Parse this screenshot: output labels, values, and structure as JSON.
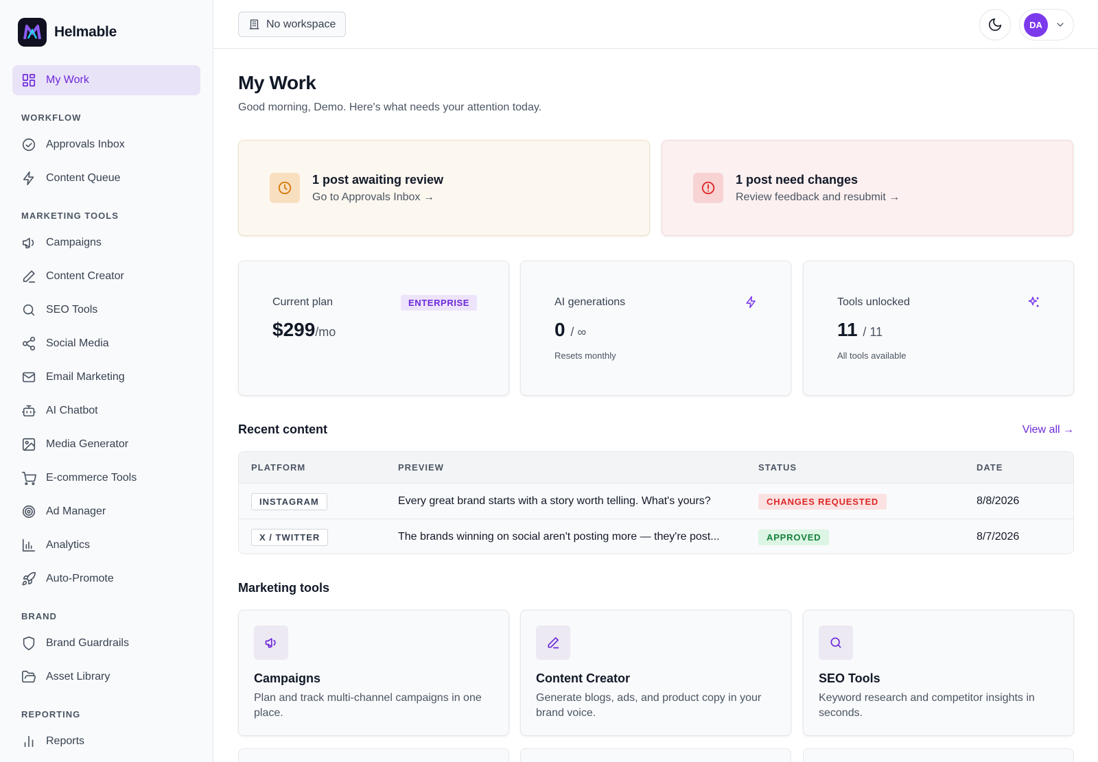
{
  "app": {
    "name": "Helmable"
  },
  "sidebar": {
    "top_item": {
      "label": "My Work",
      "icon": "grid-icon"
    },
    "sections": {
      "workflow": "WORKFLOW",
      "marketing": "MARKETING TOOLS",
      "brand": "BRAND",
      "reporting": "REPORTING"
    },
    "workflow_items": [
      "Approvals Inbox",
      "Content Queue"
    ],
    "marketing_items": [
      "Campaigns",
      "Content Creator",
      "SEO Tools",
      "Social Media",
      "Email Marketing",
      "AI Chatbot",
      "Media Generator",
      "E-commerce Tools",
      "Ad Manager",
      "Analytics",
      "Auto-Promote"
    ],
    "brand_items": [
      "Brand Guardrails",
      "Asset Library"
    ],
    "reporting_items": [
      "Reports"
    ]
  },
  "header": {
    "workspace": "No workspace",
    "user_initials": "DA"
  },
  "main": {
    "title": "My Work",
    "subtitle": "Good morning, Demo. Here's what needs your attention today.",
    "alerts": [
      {
        "title": "1 post awaiting review",
        "link": "Go to Approvals Inbox →",
        "color": "#d97706"
      },
      {
        "title": "1 post need changes",
        "link": "Review feedback and resubmit →",
        "color": "#dc2626"
      }
    ],
    "stats": {
      "plan": {
        "label": "Current plan",
        "badge": "ENTERPRISE",
        "value": "$299",
        "suffix": "/mo"
      },
      "ai": {
        "label": "AI generations",
        "value": "0",
        "suffix": "/ ∞",
        "note": "Resets monthly"
      },
      "tools": {
        "label": "Tools unlocked",
        "value": "11",
        "suffix": "/ 11",
        "note": "All tools available"
      }
    },
    "recent": {
      "title": "Recent content",
      "view_all": "View all →",
      "columns": [
        "PLATFORM",
        "PREVIEW",
        "STATUS",
        "DATE"
      ],
      "rows": [
        {
          "platform": "INSTAGRAM",
          "preview": "Every great brand starts with a story worth telling. What's yours?",
          "status": "CHANGES REQUESTED",
          "date": "8/8/2026"
        },
        {
          "platform": "X / TWITTER",
          "preview": "The brands winning on social aren't posting more — they're post...",
          "status": "APPROVED",
          "date": "8/7/2026"
        }
      ]
    },
    "tools_section": {
      "title": "Marketing tools",
      "cards": [
        {
          "title": "Campaigns",
          "desc": "Plan and track multi-channel campaigns in one place.",
          "icon": "megaphone-icon"
        },
        {
          "title": "Content Creator",
          "desc": "Generate blogs, ads, and product copy in your brand voice.",
          "icon": "pen-icon"
        },
        {
          "title": "SEO Tools",
          "desc": "Keyword research and competitor insights in seconds.",
          "icon": "search-icon"
        }
      ]
    }
  },
  "colors": {
    "accent": "#6d28d9",
    "accent_bg": "#e9e3f8",
    "avatar": "#7c3aed"
  }
}
